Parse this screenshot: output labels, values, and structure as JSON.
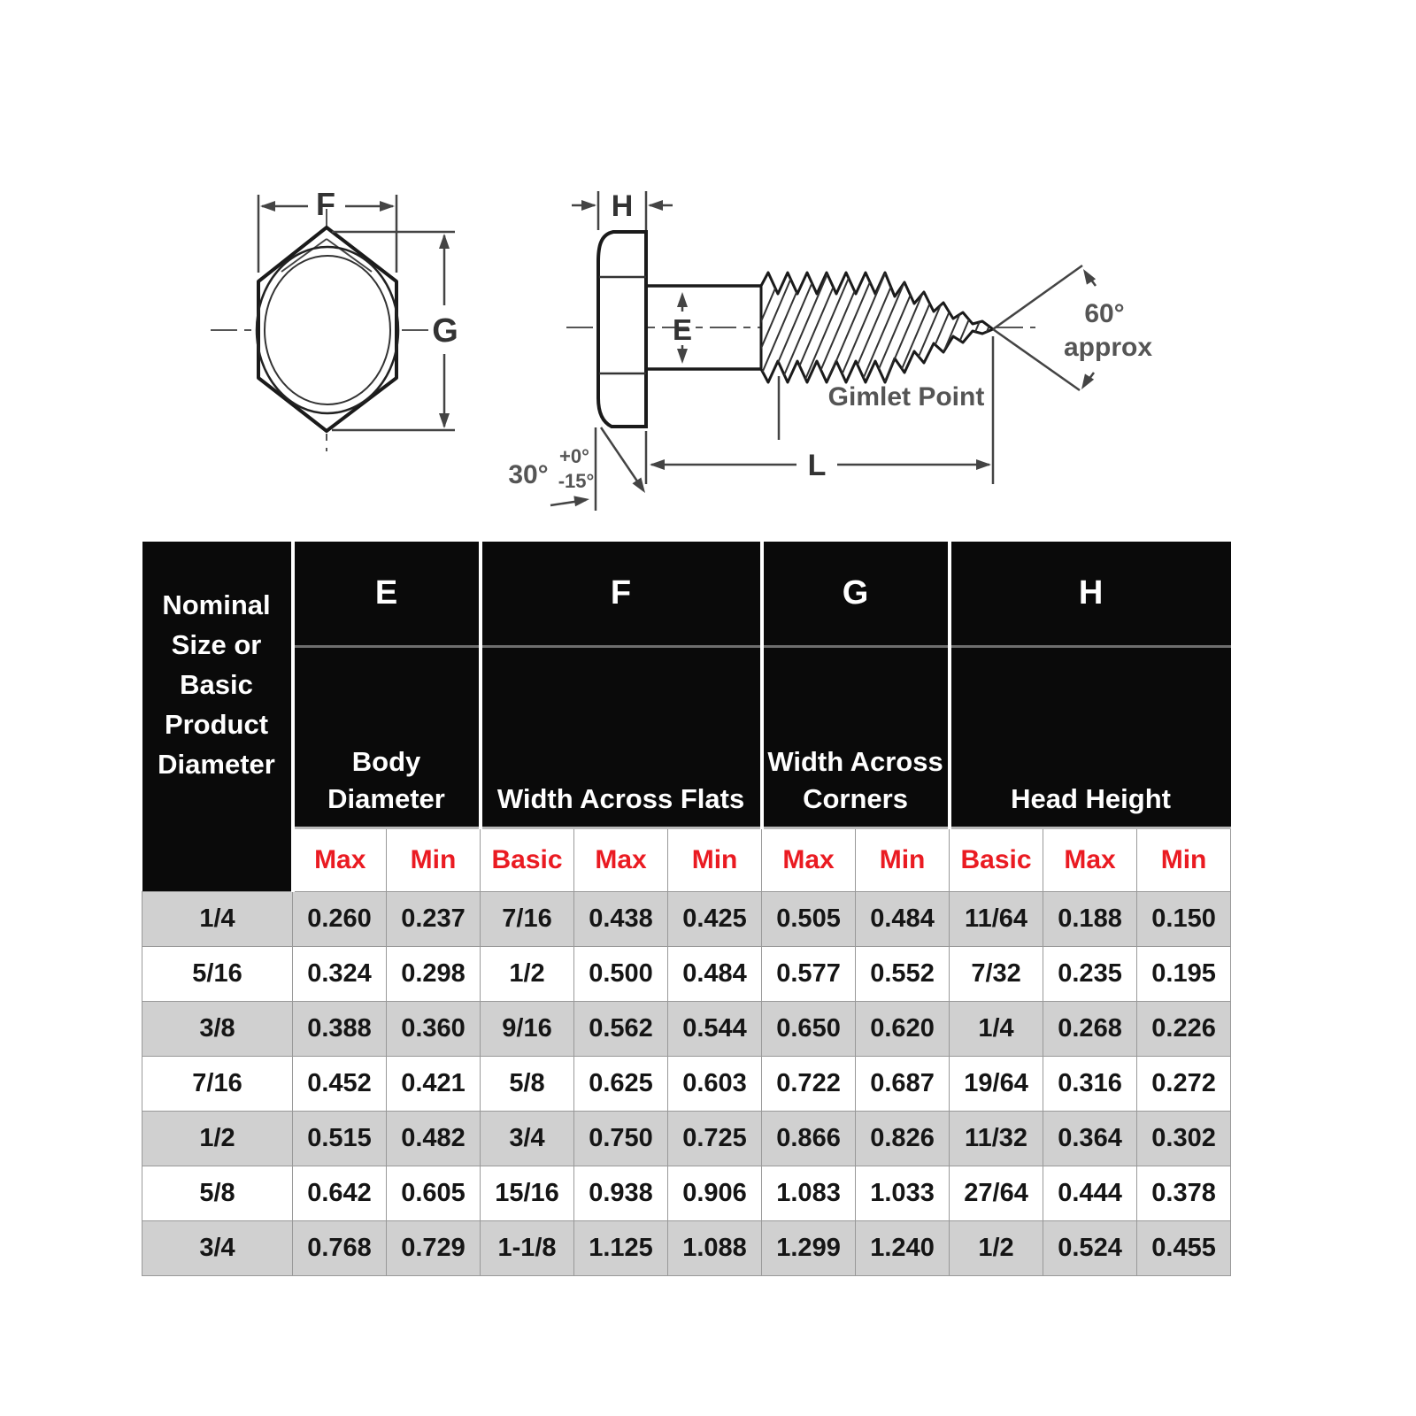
{
  "diagram": {
    "labels": {
      "f": "F",
      "g": "G",
      "h": "H",
      "e": "E",
      "l": "L",
      "angle30": "30°",
      "tol_plus": "+0°",
      "tol_minus": "-15°",
      "angle60": "60°",
      "angle60_approx": "approx",
      "gimlet_point": "Gimlet Point"
    }
  },
  "table": {
    "corner_header": "Nominal Size or Basic Product Diameter",
    "groups": [
      {
        "letter": "E",
        "name": "Body Diameter",
        "cols": [
          "Max",
          "Min"
        ]
      },
      {
        "letter": "F",
        "name": "Width Across Flats",
        "cols": [
          "Basic",
          "Max",
          "Min"
        ]
      },
      {
        "letter": "G",
        "name": "Width Across Corners",
        "cols": [
          "Max",
          "Min"
        ]
      },
      {
        "letter": "H",
        "name": "Head Height",
        "cols": [
          "Basic",
          "Max",
          "Min"
        ]
      }
    ],
    "sub_headers": [
      "Max",
      "Min",
      "Basic",
      "Max",
      "Min",
      "Max",
      "Min",
      "Basic",
      "Max",
      "Min"
    ],
    "rows": [
      {
        "size": "1/4",
        "values": [
          "0.260",
          "0.237",
          "7/16",
          "0.438",
          "0.425",
          "0.505",
          "0.484",
          "11/64",
          "0.188",
          "0.150"
        ]
      },
      {
        "size": "5/16",
        "values": [
          "0.324",
          "0.298",
          "1/2",
          "0.500",
          "0.484",
          "0.577",
          "0.552",
          "7/32",
          "0.235",
          "0.195"
        ]
      },
      {
        "size": "3/8",
        "values": [
          "0.388",
          "0.360",
          "9/16",
          "0.562",
          "0.544",
          "0.650",
          "0.620",
          "1/4",
          "0.268",
          "0.226"
        ]
      },
      {
        "size": "7/16",
        "values": [
          "0.452",
          "0.421",
          "5/8",
          "0.625",
          "0.603",
          "0.722",
          "0.687",
          "19/64",
          "0.316",
          "0.272"
        ]
      },
      {
        "size": "1/2",
        "values": [
          "0.515",
          "0.482",
          "3/4",
          "0.750",
          "0.725",
          "0.866",
          "0.826",
          "11/32",
          "0.364",
          "0.302"
        ]
      },
      {
        "size": "5/8",
        "values": [
          "0.642",
          "0.605",
          "15/16",
          "0.938",
          "0.906",
          "1.083",
          "1.033",
          "27/64",
          "0.444",
          "0.378"
        ]
      },
      {
        "size": "3/4",
        "values": [
          "0.768",
          "0.729",
          "1-1/8",
          "1.125",
          "1.088",
          "1.299",
          "1.240",
          "1/2",
          "0.524",
          "0.455"
        ]
      }
    ]
  },
  "colors": {
    "header_bg": "#0a0a0a",
    "header_text": "#ffffff",
    "subheader_text": "#ea1b22",
    "row_alt_bg": "#d0d0d0",
    "row_bg": "#ffffff",
    "grid_line": "#999999",
    "object_line": "#1a1a1a",
    "dimension_line": "#444444"
  }
}
